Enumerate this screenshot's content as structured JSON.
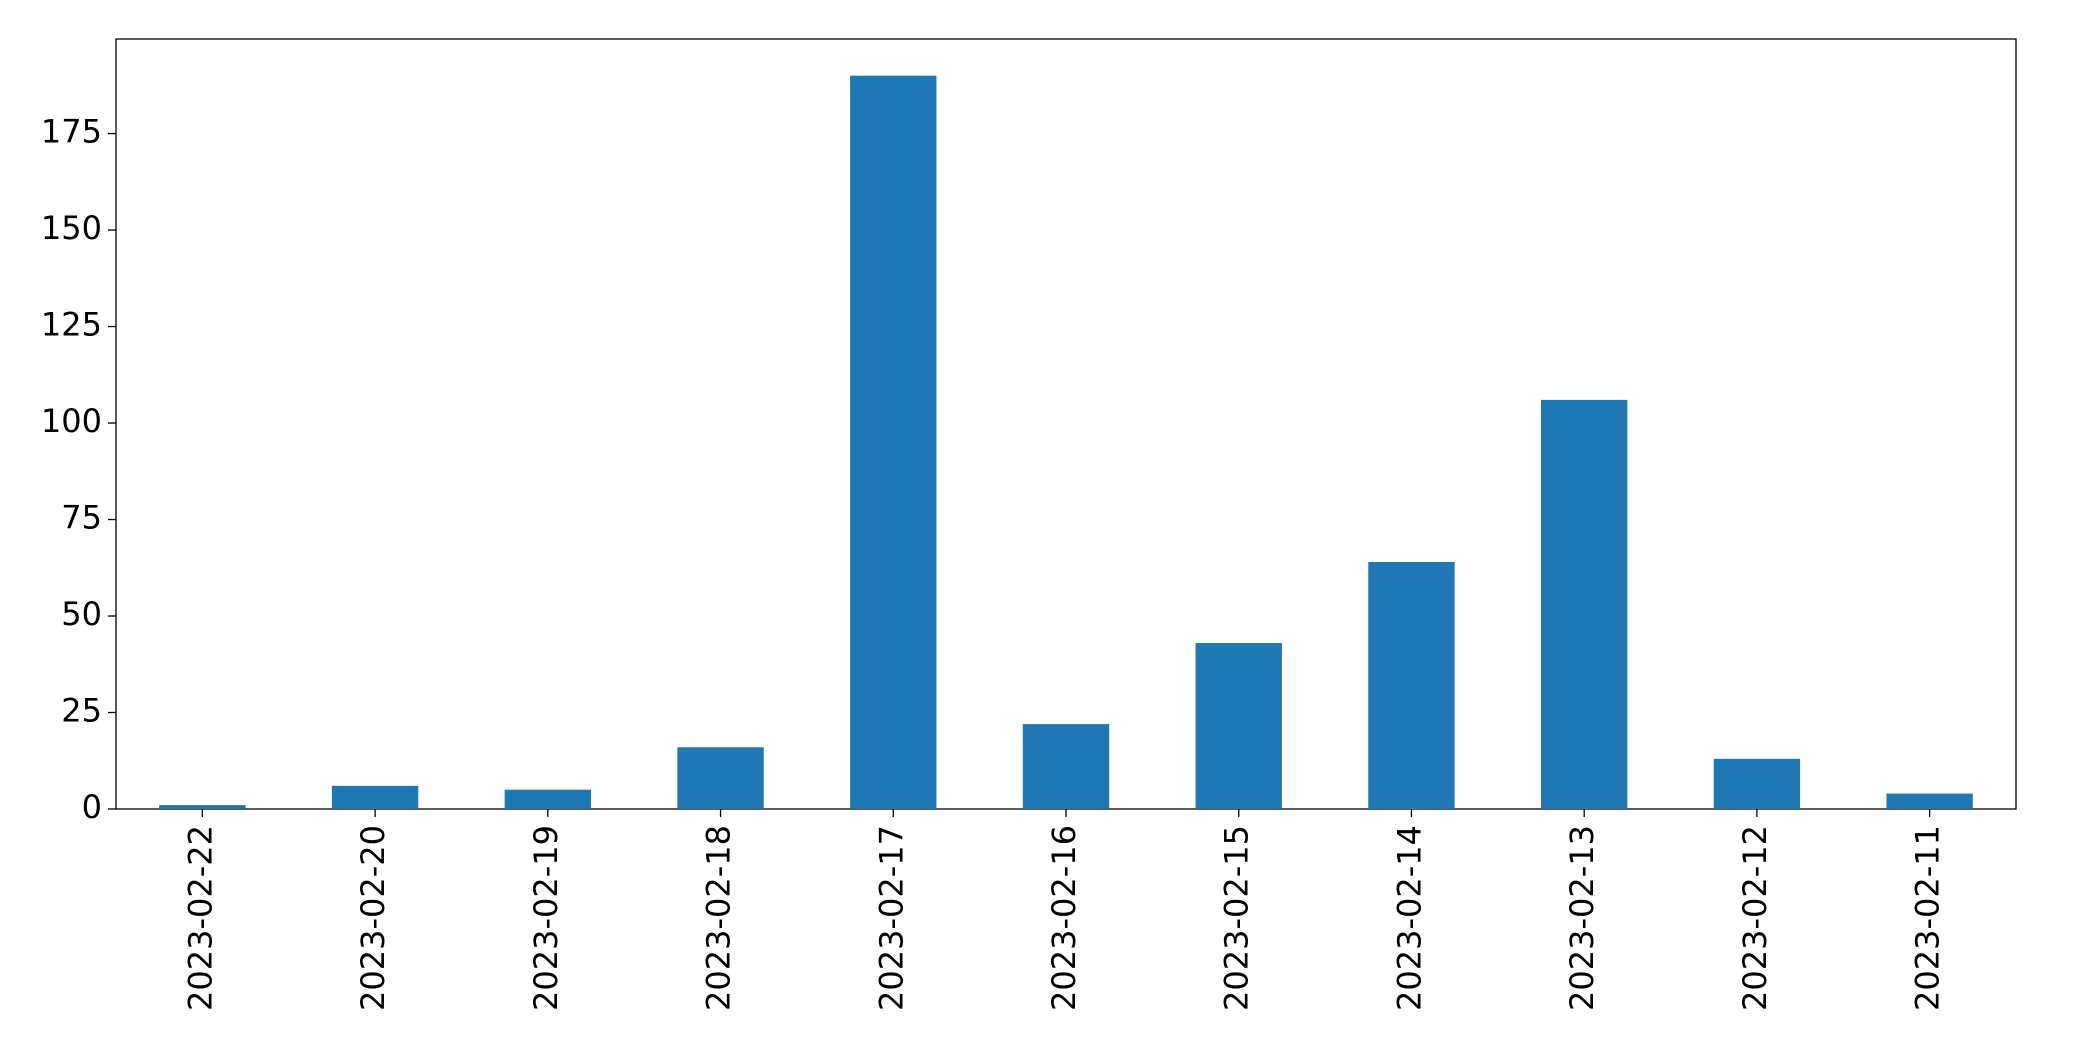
{
  "chart_data": {
    "type": "bar",
    "categories": [
      "2023-02-22",
      "2023-02-20",
      "2023-02-19",
      "2023-02-18",
      "2023-02-17",
      "2023-02-16",
      "2023-02-15",
      "2023-02-14",
      "2023-02-13",
      "2023-02-12",
      "2023-02-11"
    ],
    "values": [
      1,
      6,
      5,
      16,
      190,
      22,
      43,
      64,
      106,
      13,
      4
    ],
    "color": "#1f77b4",
    "ylim": [
      0,
      199.5
    ],
    "yticks": [
      0,
      25,
      50,
      75,
      100,
      125,
      150,
      175
    ],
    "grid": false
  }
}
